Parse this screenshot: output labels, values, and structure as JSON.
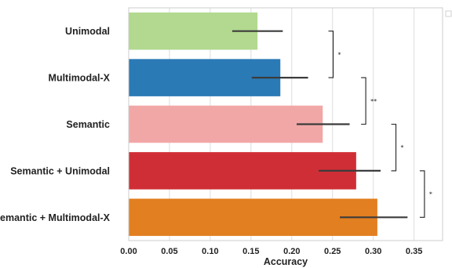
{
  "chart_data": {
    "type": "bar",
    "orientation": "horizontal",
    "categories": [
      "Unimodal",
      "Multimodal-X",
      "Semantic",
      "Semantic + Unimodal",
      "Semantic + Multimodal-X"
    ],
    "values": [
      0.158,
      0.186,
      0.238,
      0.279,
      0.305
    ],
    "error_bars": [
      [
        0.127,
        0.189
      ],
      [
        0.151,
        0.22
      ],
      [
        0.206,
        0.271
      ],
      [
        0.233,
        0.309
      ],
      [
        0.259,
        0.342
      ]
    ],
    "colors": [
      "#b2d98f",
      "#2a7ab5",
      "#f2a7a7",
      "#cf2e36",
      "#e27f21"
    ],
    "xlabel": "Accuracy",
    "ylabel": "",
    "xlim": [
      0,
      0.385
    ],
    "xticks": [
      "0.00",
      "0.05",
      "0.10",
      "0.15",
      "0.20",
      "0.25",
      "0.30",
      "0.35"
    ],
    "grid": "vertical",
    "significance": [
      {
        "between": [
          "Unimodal",
          "Multimodal-X"
        ],
        "label": "*"
      },
      {
        "between": [
          "Multimodal-X",
          "Semantic"
        ],
        "label": "**"
      },
      {
        "between": [
          "Semantic",
          "Semantic + Unimodal"
        ],
        "label": "*"
      },
      {
        "between": [
          "Semantic + Unimodal",
          "Semantic + Multimodal-X"
        ],
        "label": "*"
      }
    ]
  }
}
